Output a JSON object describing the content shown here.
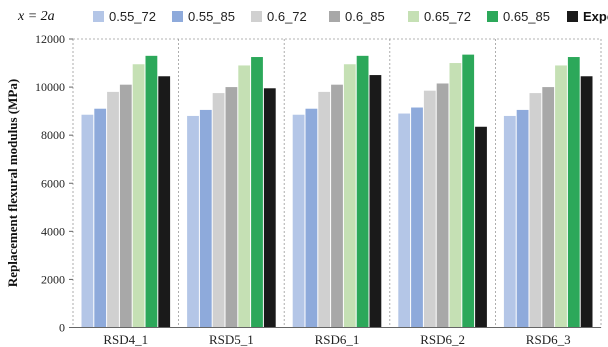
{
  "chart_data": {
    "type": "bar",
    "annotation": "x = 2a",
    "ylabel": "Replacement flexural modulus (MPa)",
    "xlabel": "",
    "categories": [
      "RSD4_1",
      "RSD5_1",
      "RSD6_1",
      "RSD6_2",
      "RSD6_3"
    ],
    "ylim": [
      0,
      12000
    ],
    "yticks": [
      0,
      2000,
      4000,
      6000,
      8000,
      10000,
      12000
    ],
    "legend_position": "top",
    "grid": "vertical dashed separators between categories",
    "series": [
      {
        "name": "0.55_72",
        "color": "#b4c6e7",
        "values": [
          8850,
          8800,
          8850,
          8900,
          8800
        ]
      },
      {
        "name": "0.55_85",
        "color": "#8eaadb",
        "values": [
          9100,
          9050,
          9100,
          9150,
          9050
        ]
      },
      {
        "name": "0.6_72",
        "color": "#d0d0d0",
        "values": [
          9800,
          9750,
          9800,
          9850,
          9750
        ]
      },
      {
        "name": "0.6_85",
        "color": "#a8a8a8",
        "values": [
          10100,
          10000,
          10100,
          10150,
          10000
        ]
      },
      {
        "name": "0.65_72",
        "color": "#c5e0b4",
        "values": [
          10950,
          10900,
          10950,
          11000,
          10900
        ]
      },
      {
        "name": "0.65_85",
        "color": "#2ca85a",
        "values": [
          11300,
          11250,
          11300,
          11350,
          11250
        ]
      },
      {
        "name": "Experiment",
        "color": "#1a1a1a",
        "values": [
          10450,
          9950,
          10500,
          8350,
          10450
        ]
      }
    ]
  }
}
